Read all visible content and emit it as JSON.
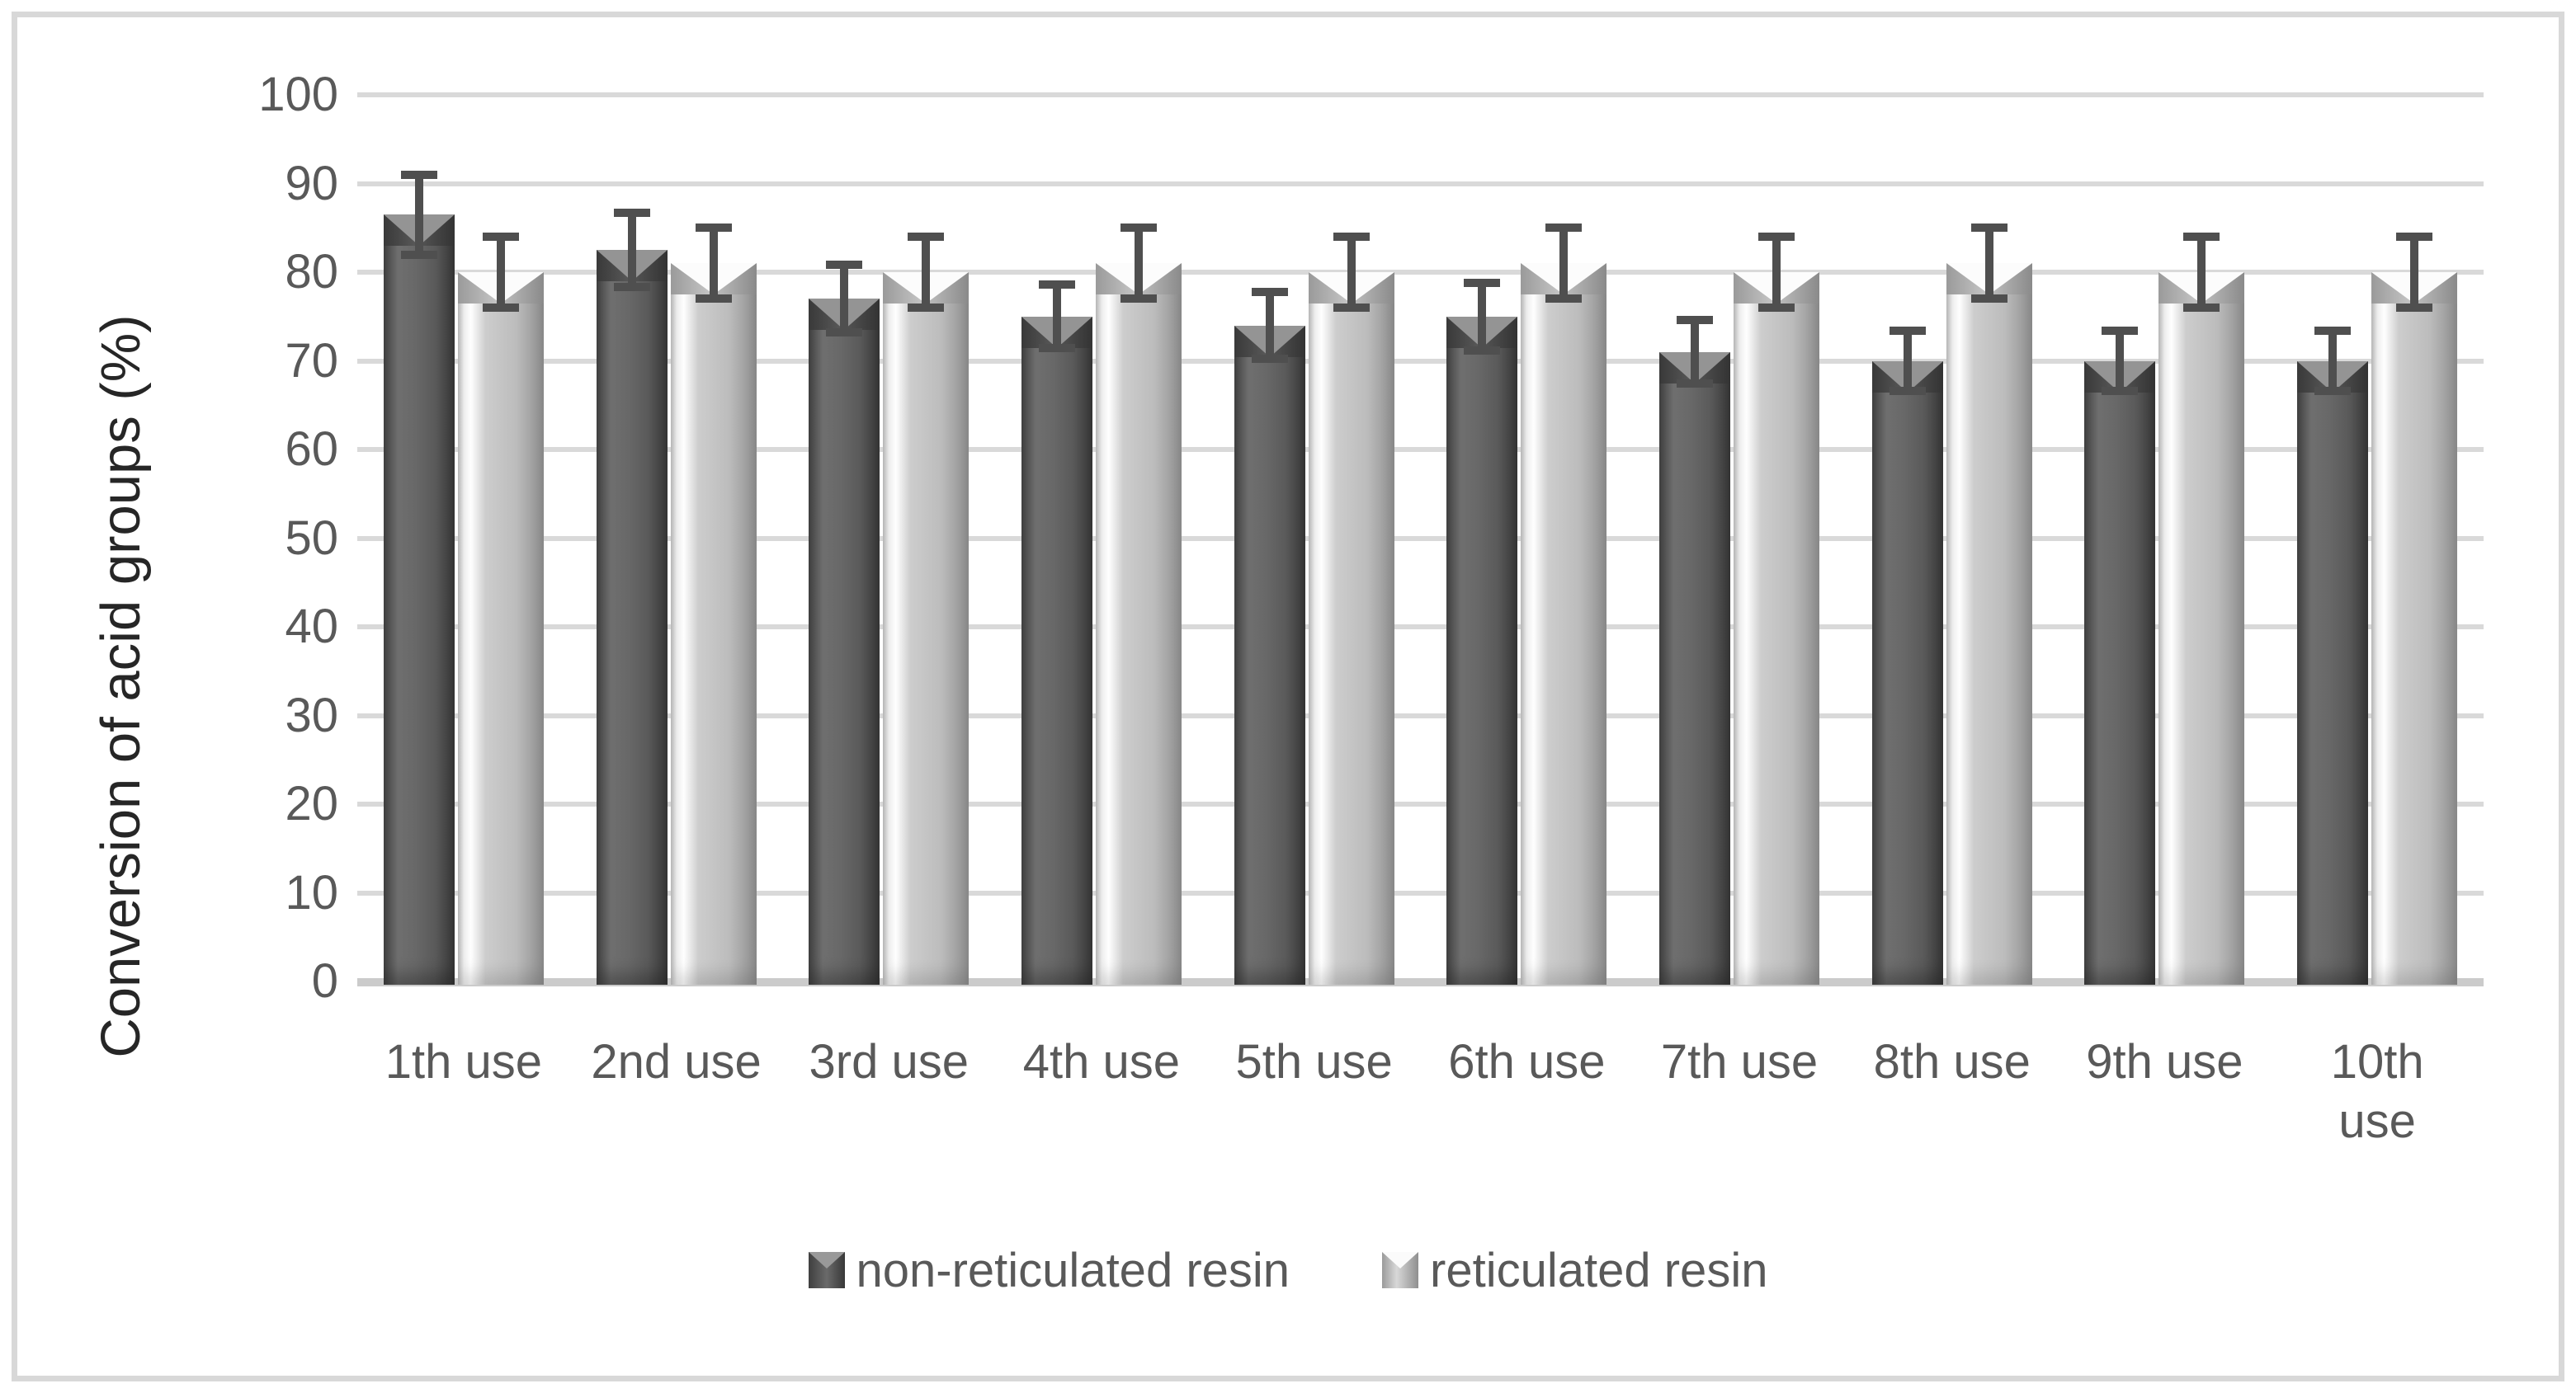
{
  "chart_data": {
    "type": "bar",
    "title": "",
    "ylabel": "Conversion of acid groups (%)",
    "xlabel": "",
    "categories": [
      "1th use",
      "2nd use",
      "3rd use",
      "4th use",
      "5th use",
      "6th use",
      "7th use",
      "8th use",
      "9th use",
      "10th use"
    ],
    "series": [
      {
        "name": "non-reticulated resin",
        "values": [
          86.5,
          82.5,
          77,
          75,
          74,
          75,
          71,
          70,
          70,
          70
        ],
        "error_plus": [
          4.5,
          4.2,
          3.8,
          3.6,
          3.8,
          3.8,
          3.6,
          3.4,
          3.4,
          3.4
        ],
        "error_minus": [
          4.5,
          4.2,
          3.8,
          3.6,
          3.8,
          3.8,
          3.6,
          3.4,
          3.4,
          3.4
        ],
        "color": "#5a5a5a"
      },
      {
        "name": "reticulated resin",
        "values": [
          80,
          81,
          80,
          81,
          80,
          81,
          80,
          81,
          80,
          80
        ],
        "error_plus": [
          4,
          4,
          4,
          4,
          4,
          4,
          4,
          4,
          4,
          4
        ],
        "error_minus": [
          4,
          4,
          4,
          4,
          4,
          4,
          4,
          4,
          4,
          4
        ],
        "color": "#bdbdbd"
      }
    ],
    "ylim": [
      0,
      100
    ],
    "ytick_step": 10,
    "yticks": [
      "0",
      "10",
      "20",
      "30",
      "40",
      "50",
      "60",
      "70",
      "80",
      "90",
      "100"
    ],
    "grid": "horizontal",
    "error_bars": true,
    "legend_position": "bottom"
  },
  "colors": {
    "gridline": "#d9d9d9",
    "baseline": "#cbcbcb",
    "tick_text": "#595959",
    "axis_title_text": "#262626",
    "error_bar": "#4f4f4f",
    "frame_border": "#d8d8d8",
    "background": "#ffffff"
  }
}
